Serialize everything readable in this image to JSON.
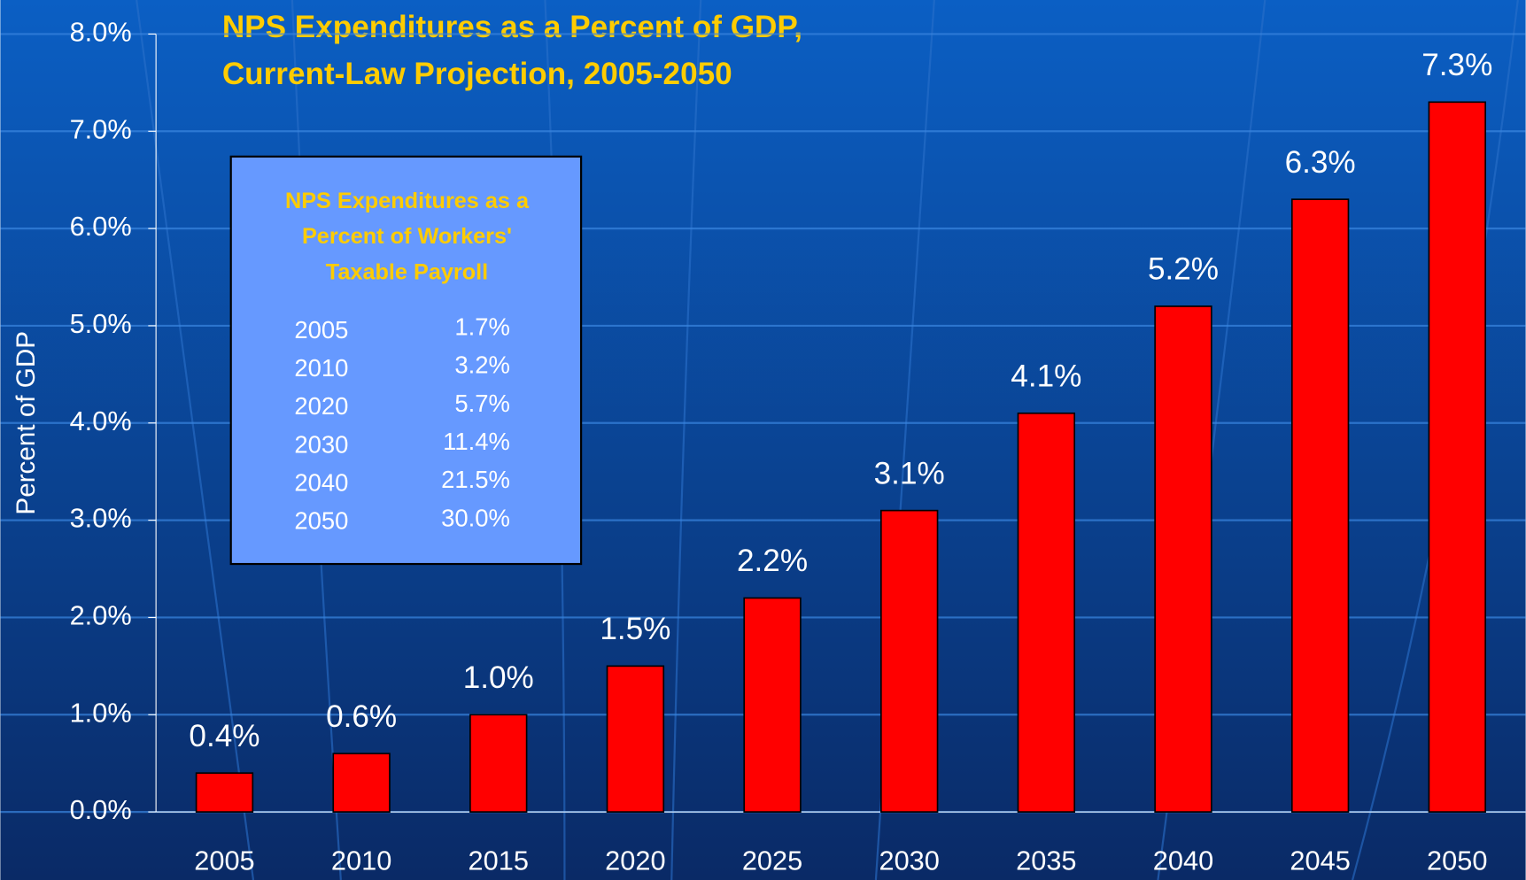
{
  "chart_data": {
    "type": "bar",
    "title": [
      "NPS Expenditures as a Percent of GDP,",
      "Current-Law Projection, 2005-2050"
    ],
    "y_label": "Percent of GDP",
    "categories": [
      "2005",
      "2010",
      "2015",
      "2020",
      "2025",
      "2030",
      "2035",
      "2040",
      "2045",
      "2050"
    ],
    "values": [
      0.4,
      0.6,
      1.0,
      1.5,
      2.2,
      3.1,
      4.1,
      5.2,
      6.3,
      7.3
    ],
    "value_labels": [
      "0.4%",
      "0.6%",
      "1.0%",
      "1.5%",
      "2.2%",
      "3.1%",
      "4.1%",
      "5.2%",
      "6.3%",
      "7.3%"
    ],
    "color": "#ff0000",
    "ylim": [
      0,
      8
    ],
    "yticks": [
      {
        "value": 0,
        "label": "0.0%"
      },
      {
        "value": 1,
        "label": "1.0%"
      },
      {
        "value": 2,
        "label": "2.0%"
      },
      {
        "value": 3,
        "label": "3.0%"
      },
      {
        "value": 4,
        "label": "4.0%"
      },
      {
        "value": 5,
        "label": "5.0%"
      },
      {
        "value": 6,
        "label": "6.0%"
      },
      {
        "value": 7,
        "label": "7.0%"
      },
      {
        "value": 8,
        "label": "8.0%"
      }
    ],
    "grid": true,
    "inset": {
      "title": [
        "NPS Expenditures as a",
        "Percent of Workers'",
        "Taxable Payroll"
      ],
      "rows": [
        [
          "2005",
          "1.7%"
        ],
        [
          "2010",
          "3.2%"
        ],
        [
          "2020",
          "5.7%"
        ],
        [
          "2030",
          "11.4%"
        ],
        [
          "2040",
          "21.5%"
        ],
        [
          "2050",
          "30.0%"
        ]
      ]
    }
  }
}
